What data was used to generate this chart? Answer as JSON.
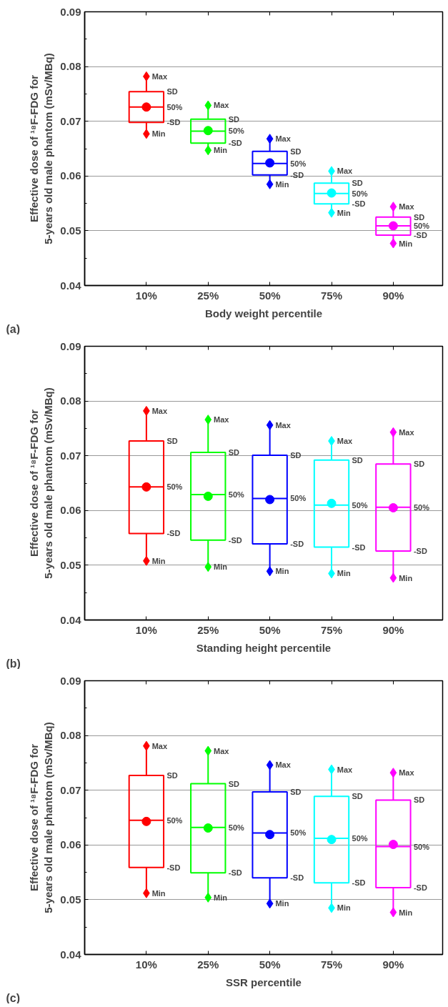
{
  "chart_data": [
    {
      "type": "box",
      "categories": [
        "10%",
        "25%",
        "50%",
        "75%",
        "90%"
      ],
      "xlabel": "Body weight percentile",
      "ylabel": "Effective dose of ¹⁸F-FDG for\n5-years old male phantom (mSv/MBq)",
      "colors": [
        "#ff0000",
        "#00ff00",
        "#0000ff",
        "#00ffff",
        "#ff00ff"
      ],
      "ylim": [
        0.04,
        0.09
      ],
      "yticks": [
        0.04,
        0.05,
        0.06,
        0.07,
        0.08,
        0.09
      ],
      "grid": "y",
      "marker": "diamond",
      "boxes": [
        {
          "low": 0.0677,
          "q1": 0.0698,
          "median": 0.0726,
          "q3": 0.0754,
          "high": 0.0782,
          "mean": 0.0726
        },
        {
          "low": 0.0647,
          "q1": 0.066,
          "median": 0.0682,
          "q3": 0.0704,
          "high": 0.0729,
          "mean": 0.0683
        },
        {
          "low": 0.0585,
          "q1": 0.0602,
          "median": 0.0623,
          "q3": 0.0645,
          "high": 0.0668,
          "mean": 0.0624
        },
        {
          "low": 0.0533,
          "q1": 0.0549,
          "median": 0.0568,
          "q3": 0.0587,
          "high": 0.0609,
          "mean": 0.0569
        },
        {
          "low": 0.0477,
          "q1": 0.0492,
          "median": 0.0509,
          "q3": 0.0525,
          "high": 0.0544,
          "mean": 0.0509
        }
      ],
      "annotations": [
        "(a)",
        {
          "text": "Max",
          "x": "10%",
          "y": 0.0782
        },
        {
          "text": "SD",
          "x": "10%",
          "y": 0.0754
        },
        {
          "text": "50%",
          "x": "10%",
          "y": 0.0726
        },
        {
          "text": "-SD",
          "x": "10%",
          "y": 0.0698
        },
        {
          "text": "Min",
          "x": "10%",
          "y": 0.0677
        },
        {
          "text": "Max",
          "x": "25%",
          "y": 0.0729
        },
        {
          "text": "SD",
          "x": "25%",
          "y": 0.0704
        },
        {
          "text": "50%",
          "x": "25%",
          "y": 0.0682
        },
        {
          "text": "-SD",
          "x": "25%",
          "y": 0.066
        },
        {
          "text": "Min",
          "x": "25%",
          "y": 0.0647
        },
        {
          "text": "Max",
          "x": "50%",
          "y": 0.0668
        },
        {
          "text": "SD",
          "x": "50%",
          "y": 0.0645
        },
        {
          "text": "50%",
          "x": "50%",
          "y": 0.0623
        },
        {
          "text": "-SD",
          "x": "50%",
          "y": 0.0602
        },
        {
          "text": "Min",
          "x": "50%",
          "y": 0.0585
        },
        {
          "text": "Max",
          "x": "75%",
          "y": 0.0609
        },
        {
          "text": "SD",
          "x": "75%",
          "y": 0.0587
        },
        {
          "text": "50%",
          "x": "75%",
          "y": 0.0568
        },
        {
          "text": "-SD",
          "x": "75%",
          "y": 0.0549
        },
        {
          "text": "Min",
          "x": "75%",
          "y": 0.0533
        },
        {
          "text": "Max",
          "x": "90%",
          "y": 0.0544
        },
        {
          "text": "SD",
          "x": "90%",
          "y": 0.0525
        },
        {
          "text": "50%",
          "x": "90%",
          "y": 0.0509
        },
        {
          "text": "-SD",
          "x": "90%",
          "y": 0.0492
        },
        {
          "text": "Min",
          "x": "90%",
          "y": 0.0477
        }
      ]
    },
    {
      "type": "box",
      "categories": [
        "10%",
        "25%",
        "50%",
        "75%",
        "90%"
      ],
      "xlabel": "Standing height percentile",
      "ylabel": "Effective dose of ¹⁸F-FDG for\n5-years old male phantom (mSv/MBq)",
      "colors": [
        "#ff0000",
        "#00ff00",
        "#0000ff",
        "#00ffff",
        "#ff00ff"
      ],
      "ylim": [
        0.04,
        0.09
      ],
      "yticks": [
        0.04,
        0.05,
        0.06,
        0.07,
        0.08,
        0.09
      ],
      "grid": "y",
      "marker": "diamond",
      "boxes": [
        {
          "low": 0.0508,
          "q1": 0.0558,
          "median": 0.0643,
          "q3": 0.0727,
          "high": 0.0782,
          "mean": 0.0643
        },
        {
          "low": 0.0497,
          "q1": 0.0546,
          "median": 0.0629,
          "q3": 0.0706,
          "high": 0.0766,
          "mean": 0.0626
        },
        {
          "low": 0.0489,
          "q1": 0.0539,
          "median": 0.0622,
          "q3": 0.0701,
          "high": 0.0756,
          "mean": 0.062
        },
        {
          "low": 0.0485,
          "q1": 0.0533,
          "median": 0.061,
          "q3": 0.0692,
          "high": 0.0727,
          "mean": 0.0613
        },
        {
          "low": 0.0477,
          "q1": 0.0526,
          "median": 0.0606,
          "q3": 0.0685,
          "high": 0.0743,
          "mean": 0.0605
        }
      ],
      "annotations": [
        "(b)",
        {
          "text": "Max",
          "x": "10%",
          "y": 0.0782
        },
        {
          "text": "SD",
          "x": "10%",
          "y": 0.0727
        },
        {
          "text": "50%",
          "x": "10%",
          "y": 0.0643
        },
        {
          "text": "-SD",
          "x": "10%",
          "y": 0.0558
        },
        {
          "text": "Min",
          "x": "10%",
          "y": 0.0508
        },
        {
          "text": "Max",
          "x": "25%",
          "y": 0.0766
        },
        {
          "text": "SD",
          "x": "25%",
          "y": 0.0706
        },
        {
          "text": "50%",
          "x": "25%",
          "y": 0.0629
        },
        {
          "text": "-SD",
          "x": "25%",
          "y": 0.0546
        },
        {
          "text": "Min",
          "x": "25%",
          "y": 0.0497
        },
        {
          "text": "Max",
          "x": "50%",
          "y": 0.0756
        },
        {
          "text": "SD",
          "x": "50%",
          "y": 0.0701
        },
        {
          "text": "50%",
          "x": "50%",
          "y": 0.0622
        },
        {
          "text": "-SD",
          "x": "50%",
          "y": 0.0539
        },
        {
          "text": "Min",
          "x": "50%",
          "y": 0.0489
        },
        {
          "text": "Max",
          "x": "75%",
          "y": 0.0727
        },
        {
          "text": "SD",
          "x": "75%",
          "y": 0.0692
        },
        {
          "text": "50%",
          "x": "75%",
          "y": 0.061
        },
        {
          "text": "-SD",
          "x": "75%",
          "y": 0.0533
        },
        {
          "text": "Min",
          "x": "75%",
          "y": 0.0485
        },
        {
          "text": "Max",
          "x": "90%",
          "y": 0.0743
        },
        {
          "text": "SD",
          "x": "90%",
          "y": 0.0685
        },
        {
          "text": "50%",
          "x": "90%",
          "y": 0.0606
        },
        {
          "text": "-SD",
          "x": "90%",
          "y": 0.0526
        },
        {
          "text": "Min",
          "x": "90%",
          "y": 0.0477
        }
      ]
    },
    {
      "type": "box",
      "categories": [
        "10%",
        "25%",
        "50%",
        "75%",
        "90%"
      ],
      "xlabel": "SSR percentile",
      "ylabel": "Effective dose of ¹⁸F-FDG for\n5-years old male phantom (mSv/MBq)",
      "colors": [
        "#ff0000",
        "#00ff00",
        "#0000ff",
        "#00ffff",
        "#ff00ff"
      ],
      "ylim": [
        0.04,
        0.09
      ],
      "yticks": [
        0.04,
        0.05,
        0.06,
        0.07,
        0.08,
        0.09
      ],
      "grid": "y",
      "marker": "diamond",
      "boxes": [
        {
          "low": 0.0512,
          "q1": 0.0559,
          "median": 0.0645,
          "q3": 0.0727,
          "high": 0.0781,
          "mean": 0.0643
        },
        {
          "low": 0.0504,
          "q1": 0.0549,
          "median": 0.0632,
          "q3": 0.0712,
          "high": 0.0772,
          "mean": 0.0631
        },
        {
          "low": 0.0493,
          "q1": 0.054,
          "median": 0.0622,
          "q3": 0.0697,
          "high": 0.0746,
          "mean": 0.0619
        },
        {
          "low": 0.0485,
          "q1": 0.0531,
          "median": 0.0612,
          "q3": 0.0689,
          "high": 0.0738,
          "mean": 0.061
        },
        {
          "low": 0.0477,
          "q1": 0.0522,
          "median": 0.0597,
          "q3": 0.0682,
          "high": 0.0732,
          "mean": 0.0601
        }
      ],
      "annotations": [
        "(c)",
        {
          "text": "Max",
          "x": "10%",
          "y": 0.0781
        },
        {
          "text": "SD",
          "x": "10%",
          "y": 0.0727
        },
        {
          "text": "50%",
          "x": "10%",
          "y": 0.0645
        },
        {
          "text": "-SD",
          "x": "10%",
          "y": 0.0559
        },
        {
          "text": "Min",
          "x": "10%",
          "y": 0.0512
        },
        {
          "text": "Max",
          "x": "25%",
          "y": 0.0772
        },
        {
          "text": "SD",
          "x": "25%",
          "y": 0.0712
        },
        {
          "text": "50%",
          "x": "25%",
          "y": 0.0632
        },
        {
          "text": "-SD",
          "x": "25%",
          "y": 0.0549
        },
        {
          "text": "Min",
          "x": "25%",
          "y": 0.0504
        },
        {
          "text": "Max",
          "x": "50%",
          "y": 0.0746
        },
        {
          "text": "SD",
          "x": "50%",
          "y": 0.0697
        },
        {
          "text": "50%",
          "x": "50%",
          "y": 0.0622
        },
        {
          "text": "-SD",
          "x": "50%",
          "y": 0.054
        },
        {
          "text": "Min",
          "x": "50%",
          "y": 0.0493
        },
        {
          "text": "Max",
          "x": "75%",
          "y": 0.0738
        },
        {
          "text": "SD",
          "x": "75%",
          "y": 0.0689
        },
        {
          "text": "50%",
          "x": "75%",
          "y": 0.0612
        },
        {
          "text": "-SD",
          "x": "75%",
          "y": 0.0531
        },
        {
          "text": "Min",
          "x": "75%",
          "y": 0.0485
        },
        {
          "text": "Max",
          "x": "90%",
          "y": 0.0732
        },
        {
          "text": "SD",
          "x": "90%",
          "y": 0.0682
        },
        {
          "text": "50%",
          "x": "90%",
          "y": 0.0597
        },
        {
          "text": "-SD",
          "x": "90%",
          "y": 0.0522
        },
        {
          "text": "Min",
          "x": "90%",
          "y": 0.0477
        }
      ]
    }
  ]
}
